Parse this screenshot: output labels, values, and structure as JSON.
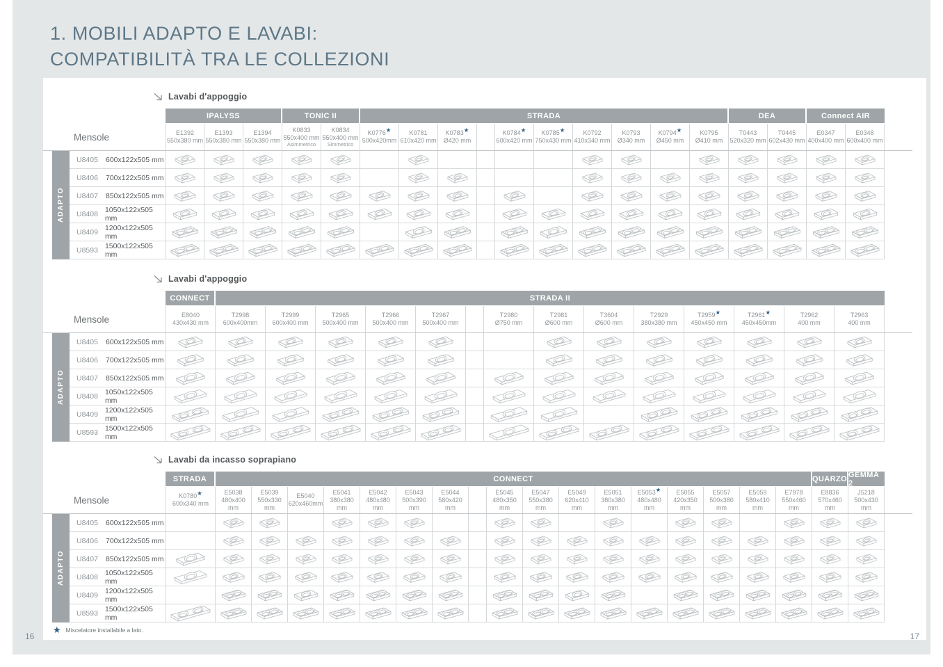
{
  "page": {
    "title_line1": "1. MOBILI ADAPTO E LAVABI:",
    "title_line2": "COMPATIBILITÀ TRA LE COLLEZIONI",
    "page_number_left": "16",
    "page_number_right": "17"
  },
  "mensole_header": "Mensole",
  "sidebar_label": "ADAPTO",
  "footnote": {
    "star": "★",
    "text": "Miscelatore installabile a lato."
  },
  "colors": {
    "accent_star": "#2f6086",
    "group_bar": "#9ea4a7",
    "page_bg": "#e4e7e8",
    "title": "#5d7787"
  },
  "shelves": [
    {
      "code": "U8405",
      "size": "600x122x505 mm"
    },
    {
      "code": "U8406",
      "size": "700x122x505 mm"
    },
    {
      "code": "U8407",
      "size": "850x122x505 mm"
    },
    {
      "code": "U8408",
      "size": "1050x122x505 mm"
    },
    {
      "code": "U8409",
      "size": "1200x122x505 mm"
    },
    {
      "code": "U8593",
      "size": "1500x122x505 mm"
    }
  ],
  "tables": [
    {
      "section_title": "Lavabi d'appoggio",
      "groups": [
        {
          "label": "IPALYSS",
          "cols": 3
        },
        {
          "label": "TONIC II",
          "cols": 2
        },
        {
          "label": "STRADA",
          "cols": 10
        },
        {
          "label": "DEA",
          "cols": 2
        },
        {
          "label": "Connect AIR",
          "cols": 2
        }
      ],
      "columns": [
        {
          "code": "E1392",
          "size": "550x380 mm"
        },
        {
          "code": "E1393",
          "size": "550x380 mm"
        },
        {
          "code": "E1394",
          "size": "550x380 mm"
        },
        {
          "code": "K0833",
          "size": "550x400 mm",
          "note": "Asimmetrico"
        },
        {
          "code": "K0834",
          "size": "550x400 mm",
          "note": "Simmetrico"
        },
        {
          "code": "K0776",
          "size": "500x420mm",
          "star": true
        },
        {
          "code": "K0781",
          "size": "610x420 mm"
        },
        {
          "code": "K0783",
          "size": "Ø420 mm",
          "star": true
        },
        {
          "spacer": true
        },
        {
          "code": "K0784",
          "size": "600x420 mm",
          "star": true
        },
        {
          "code": "K0785",
          "size": "750x430 mm",
          "star": true
        },
        {
          "code": "K0792",
          "size": "410x340 mm"
        },
        {
          "code": "K0793",
          "size": "Ø340 mm"
        },
        {
          "code": "K0794",
          "size": "Ø450 mm",
          "star": true
        },
        {
          "code": "K0795",
          "size": "Ø410 mm"
        },
        {
          "code": "T0443",
          "size": "520x320 mm"
        },
        {
          "code": "T0445",
          "size": "602x430 mm"
        },
        {
          "code": "E0347",
          "size": "400x400 mm"
        },
        {
          "code": "E0348",
          "size": "600x400 mm"
        }
      ],
      "cells": [
        [
          1,
          1,
          1,
          1,
          1,
          0,
          1,
          0,
          0,
          0,
          0,
          1,
          1,
          0,
          1,
          1,
          1,
          1,
          1
        ],
        [
          1,
          1,
          1,
          1,
          1,
          0,
          1,
          1,
          0,
          0,
          0,
          1,
          1,
          1,
          1,
          1,
          1,
          1,
          1
        ],
        [
          1,
          1,
          1,
          1,
          1,
          1,
          1,
          1,
          0,
          1,
          0,
          1,
          1,
          1,
          1,
          1,
          1,
          1,
          1
        ],
        [
          1,
          1,
          1,
          1,
          1,
          1,
          1,
          1,
          0,
          1,
          1,
          1,
          1,
          1,
          1,
          1,
          1,
          1,
          1
        ],
        [
          2,
          2,
          2,
          2,
          2,
          0,
          1,
          2,
          0,
          2,
          1,
          2,
          2,
          2,
          2,
          2,
          2,
          2,
          2
        ],
        [
          2,
          2,
          2,
          2,
          2,
          2,
          2,
          2,
          0,
          2,
          2,
          2,
          2,
          2,
          2,
          2,
          2,
          2,
          2
        ]
      ]
    },
    {
      "section_title": "Lavabi d'appoggio",
      "groups": [
        {
          "label": "CONNECT",
          "cols": 1
        },
        {
          "label": "STRADA II",
          "cols": 14
        }
      ],
      "columns": [
        {
          "code": "E8040",
          "size": "430x430 mm"
        },
        {
          "code": "T2998",
          "size": "600x400mm"
        },
        {
          "code": "T2999",
          "size": "600x400 mm"
        },
        {
          "code": "T2965",
          "size": "500x400 mm"
        },
        {
          "code": "T2966",
          "size": "500x400 mm"
        },
        {
          "code": "T2967",
          "size": "500x400 mm"
        },
        {
          "spacer": true
        },
        {
          "code": "T2980",
          "size": "Ø750 mm"
        },
        {
          "code": "T2981",
          "size": "Ø600 mm"
        },
        {
          "code": "T3604",
          "size": "Ø600 mm"
        },
        {
          "code": "T2929",
          "size": "380x380 mm"
        },
        {
          "code": "T2959",
          "size": "450x450 mm",
          "star": true
        },
        {
          "code": "T2961",
          "size": "450x450mm",
          "star": true
        },
        {
          "code": "T2962",
          "size": "400 mm"
        },
        {
          "code": "T2963",
          "size": "400 mm"
        }
      ],
      "cells": [
        [
          1,
          1,
          1,
          1,
          1,
          1,
          0,
          0,
          1,
          1,
          1,
          1,
          1,
          1,
          1
        ],
        [
          1,
          1,
          1,
          1,
          1,
          1,
          0,
          0,
          1,
          1,
          1,
          1,
          1,
          1,
          1
        ],
        [
          1,
          1,
          1,
          1,
          1,
          1,
          0,
          1,
          1,
          1,
          1,
          1,
          1,
          1,
          1
        ],
        [
          1,
          1,
          1,
          1,
          1,
          1,
          0,
          1,
          1,
          1,
          1,
          1,
          1,
          1,
          1
        ],
        [
          2,
          1,
          1,
          2,
          2,
          2,
          0,
          1,
          1,
          0,
          2,
          2,
          2,
          2,
          2
        ],
        [
          2,
          2,
          2,
          2,
          2,
          2,
          0,
          1,
          2,
          2,
          2,
          2,
          2,
          2,
          2
        ]
      ]
    },
    {
      "section_title": "Lavabi da incasso soprapiano",
      "groups": [
        {
          "label": "STRADA",
          "cols": 1
        },
        {
          "label": "CONNECT",
          "cols": 17
        },
        {
          "label": "QUARZO",
          "cols": 1
        },
        {
          "label": "GEMMA 2",
          "cols": 1
        }
      ],
      "columns": [
        {
          "code": "K0780",
          "size": "600x340 mm",
          "star": true
        },
        {
          "code": "E5038",
          "size": "480x400 mm"
        },
        {
          "code": "E5039",
          "size": "550x330 mm"
        },
        {
          "code": "E5040",
          "size": "620x460mm"
        },
        {
          "code": "E5041",
          "size": "380x380 mm"
        },
        {
          "code": "E5042",
          "size": "480x480 mm"
        },
        {
          "code": "E5043",
          "size": "500x390 mm"
        },
        {
          "code": "E5044",
          "size": "580x420 mm"
        },
        {
          "spacer": true
        },
        {
          "code": "E5045",
          "size": "480x350 mm"
        },
        {
          "code": "E5047",
          "size": "550x380 mm"
        },
        {
          "code": "E5049",
          "size": "620x410 mm"
        },
        {
          "code": "E5051",
          "size": "380x380 mm"
        },
        {
          "code": "E5053",
          "size": "480x480 mm",
          "star": true
        },
        {
          "code": "E5055",
          "size": "420x350 mm"
        },
        {
          "code": "E5057",
          "size": "500x380 mm"
        },
        {
          "code": "E5059",
          "size": "580x410 mm"
        },
        {
          "code": "E7978",
          "size": "550x460 mm"
        },
        {
          "code": "E8836",
          "size": "570x460 mm"
        },
        {
          "code": "J5218",
          "size": "500x430 mm"
        }
      ],
      "cells": [
        [
          0,
          1,
          1,
          0,
          1,
          1,
          1,
          0,
          0,
          1,
          1,
          0,
          1,
          0,
          1,
          1,
          0,
          1,
          1,
          1
        ],
        [
          0,
          1,
          1,
          1,
          1,
          1,
          1,
          1,
          0,
          1,
          1,
          1,
          1,
          1,
          1,
          1,
          1,
          1,
          1,
          1
        ],
        [
          1,
          1,
          1,
          1,
          1,
          1,
          1,
          1,
          0,
          1,
          1,
          1,
          1,
          1,
          1,
          1,
          1,
          1,
          1,
          1
        ],
        [
          1,
          1,
          1,
          1,
          1,
          1,
          1,
          1,
          0,
          1,
          1,
          1,
          1,
          1,
          1,
          1,
          1,
          1,
          1,
          1
        ],
        [
          0,
          2,
          2,
          1,
          2,
          2,
          2,
          2,
          0,
          2,
          2,
          1,
          2,
          0,
          2,
          2,
          2,
          2,
          2,
          2
        ],
        [
          2,
          2,
          2,
          2,
          2,
          2,
          2,
          2,
          0,
          2,
          2,
          2,
          2,
          2,
          2,
          2,
          2,
          2,
          2,
          2
        ]
      ]
    }
  ]
}
